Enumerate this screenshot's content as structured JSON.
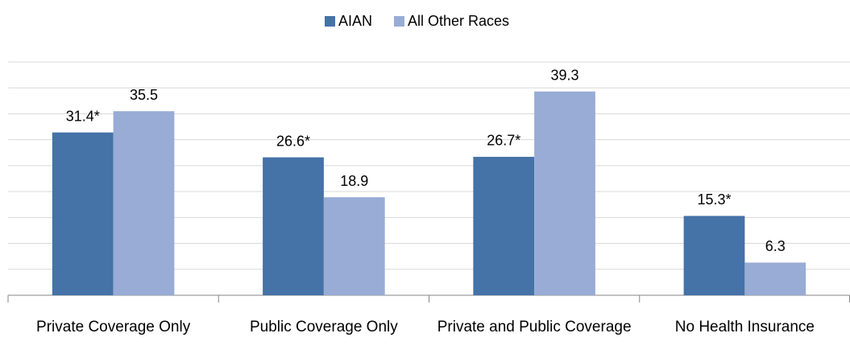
{
  "chart_data": {
    "type": "bar",
    "categories": [
      "Private Coverage Only",
      "Public Coverage Only",
      "Private and Public Coverage",
      "No Health Insurance"
    ],
    "series": [
      {
        "name": "AIAN",
        "color": "#4572a7",
        "values": [
          31.4,
          26.6,
          26.7,
          15.3
        ],
        "value_labels": [
          "31.4*",
          "26.6*",
          "26.7*",
          "15.3*"
        ]
      },
      {
        "name": "All Other Races",
        "color": "#98acd5",
        "values": [
          35.5,
          18.9,
          39.3,
          6.3
        ]
      }
    ],
    "ylim": [
      0,
      45
    ],
    "yticks": [
      0,
      5,
      10,
      15,
      20,
      25,
      30,
      35,
      40,
      45
    ],
    "grid": true,
    "legend": "top"
  }
}
